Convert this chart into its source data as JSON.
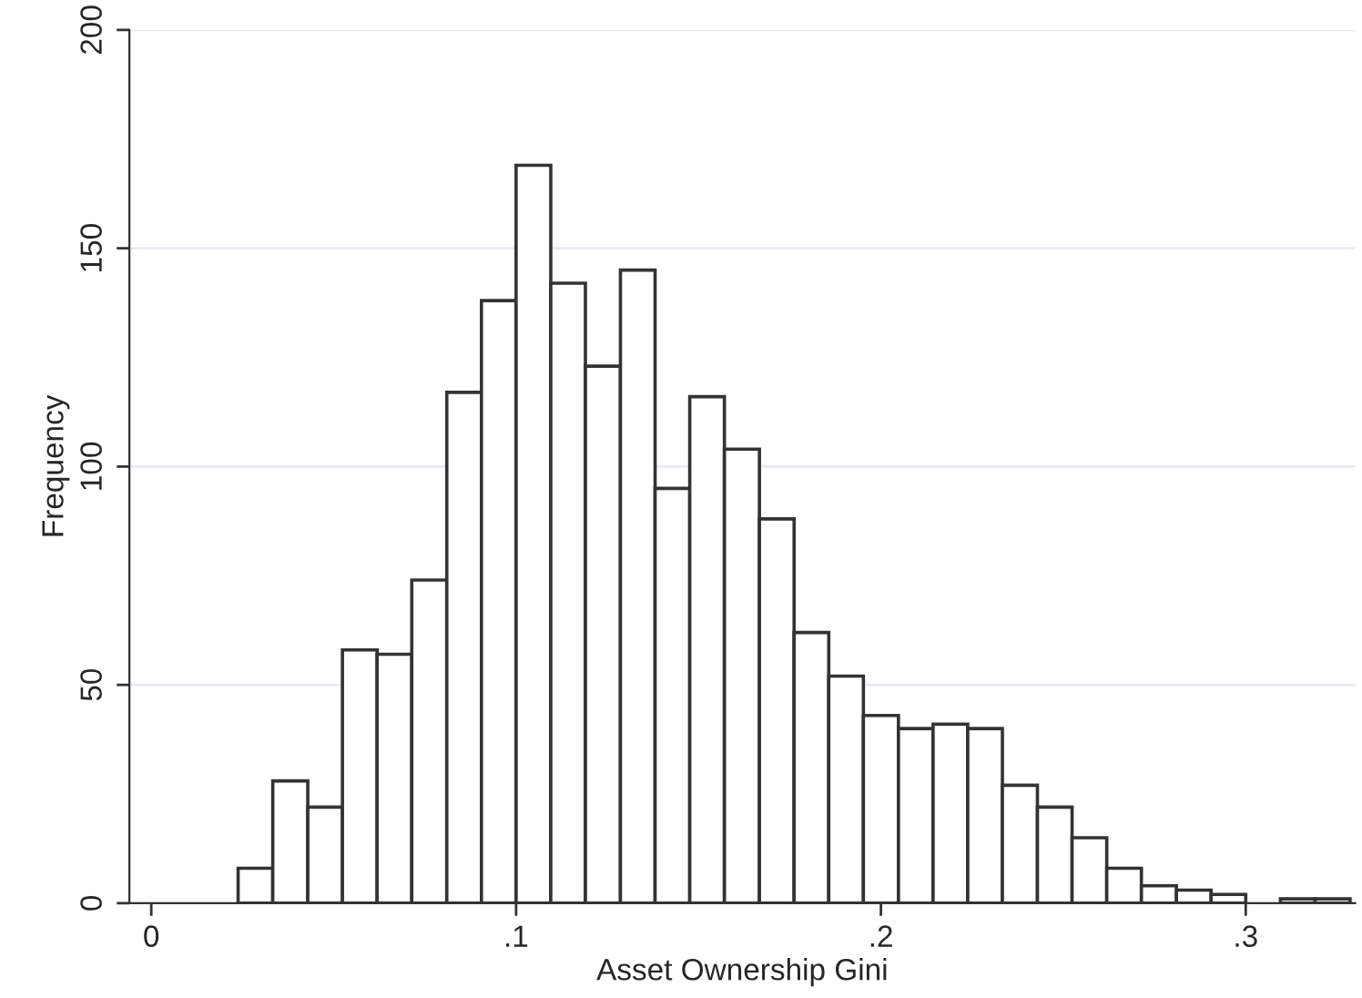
{
  "chart_data": {
    "type": "histogram",
    "xlabel": "Asset Ownership Gini",
    "ylabel": "Frequency",
    "bins": [
      0.0238,
      0.0333,
      0.0429,
      0.0524,
      0.0619,
      0.0714,
      0.081,
      0.0905,
      0.1,
      0.1095,
      0.119,
      0.1286,
      0.1381,
      0.1476,
      0.1571,
      0.1667,
      0.1762,
      0.1857,
      0.1952,
      0.2048,
      0.2143,
      0.2238,
      0.2333,
      0.2429,
      0.2524,
      0.2619,
      0.2714,
      0.281,
      0.2905,
      0.3,
      0.3095,
      0.319,
      0.3286
    ],
    "values": [
      8,
      28,
      22,
      58,
      57,
      74,
      117,
      138,
      169,
      142,
      123,
      145,
      95,
      116,
      104,
      88,
      62,
      52,
      43,
      40,
      41,
      40,
      27,
      22,
      15,
      8,
      4,
      3,
      2,
      0,
      1,
      1
    ],
    "color": "#ffffff",
    "xlim": [
      -0.006,
      0.33
    ],
    "xticks": [
      0,
      {
        "value": 0.1,
        "label": ".1"
      },
      {
        "value": 0.2,
        "label": ".2"
      },
      {
        "value": 0.3,
        "label": ".3"
      }
    ],
    "ylim": [
      0,
      200
    ],
    "yticks": [
      0,
      50,
      100,
      150,
      200
    ],
    "grid": "y"
  }
}
